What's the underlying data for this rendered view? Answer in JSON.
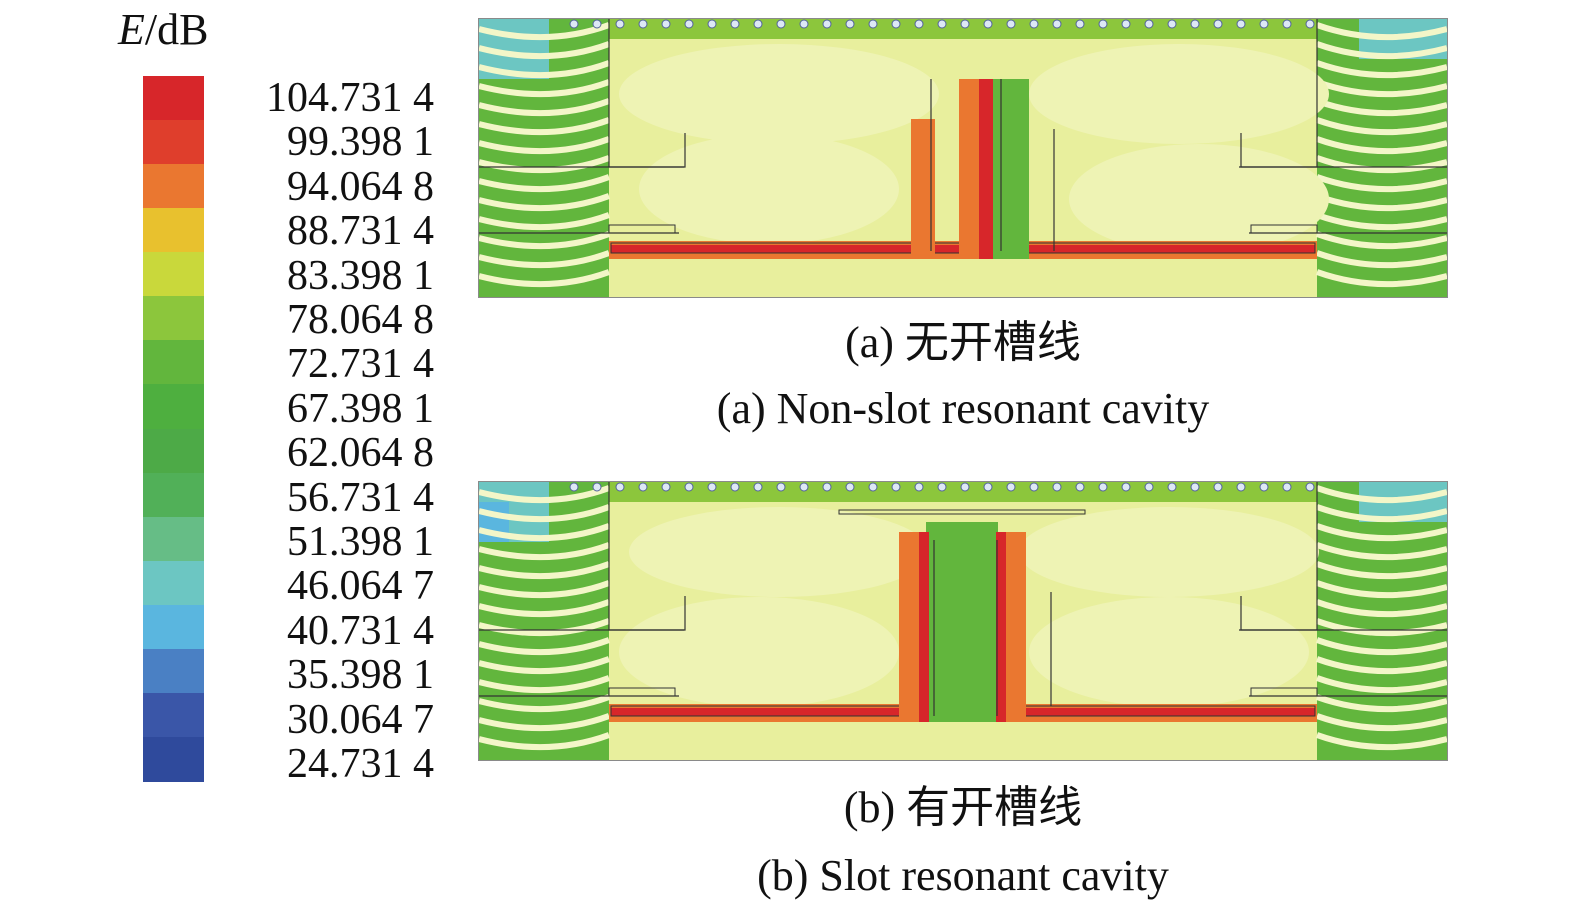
{
  "legend": {
    "symbol": "E",
    "unit": "/dB",
    "ticks": [
      "104.731 4",
      "99.398 1",
      "94.064 8",
      "88.731 4",
      "83.398 1",
      "78.064 8",
      "72.731 4",
      "67.398 1",
      "62.064 8",
      "56.731 4",
      "51.398 1",
      "46.064 7",
      "40.731 4",
      "35.398 1",
      "30.064 7",
      "24.731 4"
    ],
    "colors": [
      "#d7262a",
      "#df3e2c",
      "#ea7730",
      "#e8c12e",
      "#c9d83b",
      "#8cc63c",
      "#62b63d",
      "#4eaf3f",
      "#4daa47",
      "#51b058",
      "#66bd86",
      "#6cc6c2",
      "#5ab6df",
      "#4a80c4",
      "#3a56a8",
      "#2f4a9c"
    ]
  },
  "panels": [
    {
      "id": "a",
      "caption_zh": "(a) 无开槽线",
      "caption_en": "(a) Non-slot resonant cavity",
      "has_slot": false
    },
    {
      "id": "b",
      "caption_zh": "(b) 有开槽线",
      "caption_en": "(b) Slot resonant cavity",
      "has_slot": true
    }
  ]
}
